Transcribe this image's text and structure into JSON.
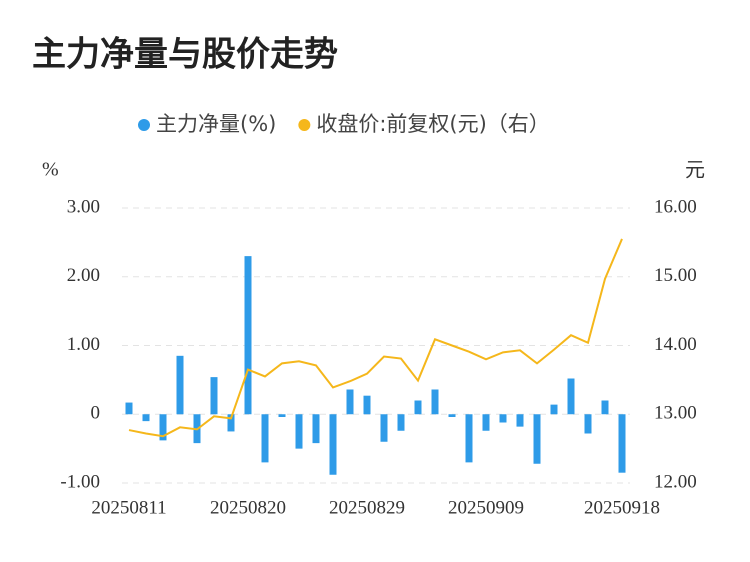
{
  "chart_data": {
    "type": "bar_line",
    "title": "主力净量与股价走势",
    "ylabel": "%",
    "y2label": "元",
    "categories": [
      "20250811",
      null,
      null,
      null,
      null,
      null,
      null,
      "20250820",
      null,
      null,
      null,
      null,
      null,
      null,
      "20250829",
      null,
      null,
      null,
      null,
      null,
      null,
      "20250909",
      null,
      null,
      null,
      null,
      null,
      null,
      null,
      "20250918"
    ],
    "series": [
      {
        "name": "主力净量(%)",
        "type": "bar",
        "color": "#2e9be8",
        "axis": "y",
        "values": [
          0.17,
          -0.1,
          -0.38,
          0.85,
          -0.42,
          0.54,
          -0.25,
          2.3,
          -0.7,
          -0.04,
          -0.5,
          -0.42,
          -0.88,
          0.36,
          0.27,
          -0.4,
          -0.24,
          0.2,
          0.36,
          -0.04,
          -0.7,
          -0.24,
          -0.12,
          -0.18,
          -0.72,
          0.14,
          0.52,
          -0.28,
          0.2,
          -0.85
        ]
      },
      {
        "name": "收盘价:前复权(元)（右）",
        "type": "line",
        "color": "#f5b71b",
        "axis": "y2",
        "values": [
          12.77,
          12.72,
          12.68,
          12.81,
          12.78,
          12.97,
          12.94,
          13.65,
          13.55,
          13.74,
          13.77,
          13.71,
          13.39,
          13.48,
          13.59,
          13.84,
          13.81,
          13.49,
          14.09,
          14.0,
          13.91,
          13.8,
          13.9,
          13.93,
          13.74,
          13.94,
          14.15,
          14.04,
          14.97,
          15.55
        ]
      }
    ],
    "ylim": [
      -1,
      3
    ],
    "yticks": [
      {
        "value": -1,
        "label": "-1.00"
      },
      0,
      {
        "value": 1,
        "label": "1.00"
      },
      {
        "value": 2,
        "label": "2.00"
      },
      {
        "value": 3,
        "label": "3.00"
      }
    ],
    "y2lim": [
      12,
      16
    ],
    "y2ticks": [
      {
        "value": 12,
        "label": "12.00"
      },
      {
        "value": 13,
        "label": "13.00"
      },
      {
        "value": 14,
        "label": "14.00"
      },
      {
        "value": 15,
        "label": "15.00"
      },
      {
        "value": 16,
        "label": "16.00"
      }
    ],
    "grid": true
  }
}
